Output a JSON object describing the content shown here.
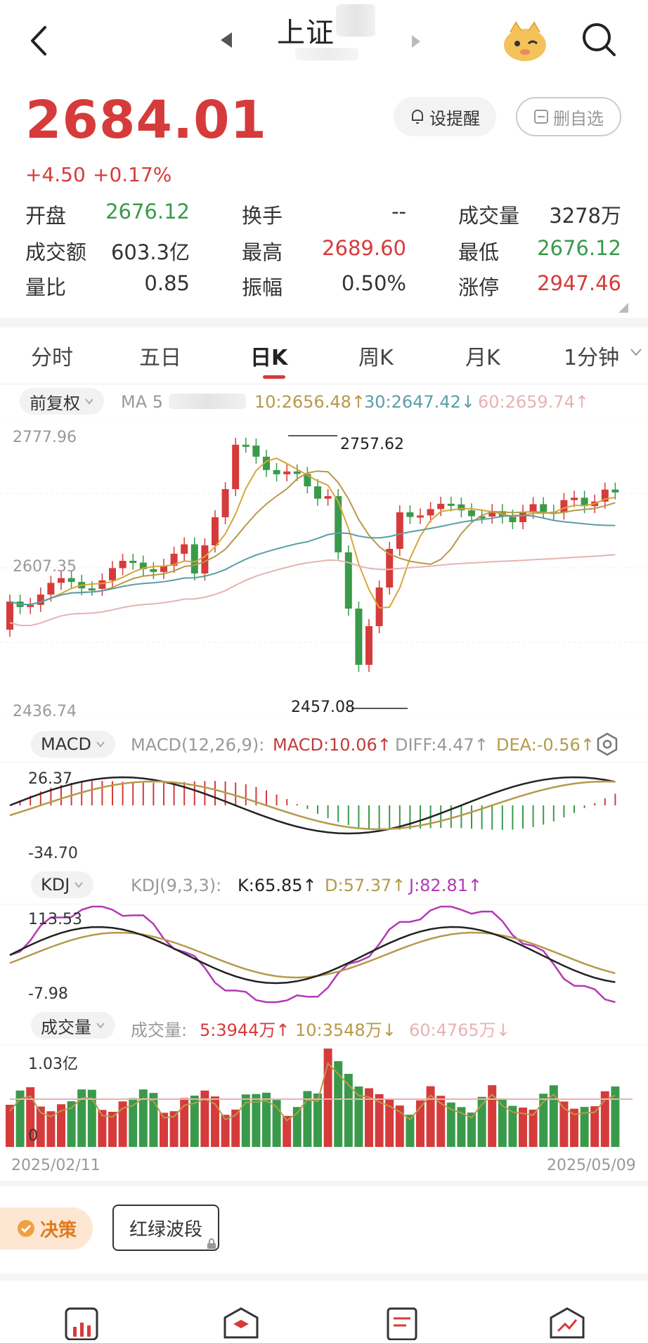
{
  "header": {
    "title": "上证",
    "back_icon": "back-arrow-icon",
    "prev_icon": "prev-triangle-icon",
    "next_icon": "next-triangle-icon",
    "mascot_icon": "mascot-icon",
    "search_icon": "search-icon"
  },
  "quote": {
    "price": "2684.01",
    "change": "+4.50",
    "change_pct": "+0.17%",
    "alert_label": "设提醒",
    "remove_label": "删自选"
  },
  "stats": {
    "open_label": "开盘",
    "open_value": "2676.12",
    "turnover_label": "换手",
    "turnover_value": "--",
    "volume_label": "成交量",
    "volume_value": "3278万",
    "amount_label": "成交额",
    "amount_value": "603.3亿",
    "high_label": "最高",
    "high_value": "2689.60",
    "low_label": "最低",
    "low_value": "2676.12",
    "ratio_label": "量比",
    "ratio_value": "0.85",
    "amplitude_label": "振幅",
    "amplitude_value": "0.50%",
    "limit_label": "涨停",
    "limit_value": "2947.46"
  },
  "tabs": [
    {
      "label": "分时"
    },
    {
      "label": "五日"
    },
    {
      "label": "日K"
    },
    {
      "label": "周K"
    },
    {
      "label": "月K"
    },
    {
      "label": "1分钟"
    }
  ],
  "active_tab": "日K",
  "kline": {
    "adjust_label": "前复权",
    "ma_label": "MA 5",
    "ma10": "10:2656.48↑",
    "ma30": "30:2647.42↓",
    "ma60": "60:2659.74↑",
    "top_axis": "2777.96",
    "mid_axis": "2607.35",
    "bottom_axis": "2436.74",
    "high_marker": "2757.62",
    "low_marker": "2457.08"
  },
  "macd": {
    "tag": "MACD",
    "params": "MACD(12,26,9):",
    "macd": "MACD:10.06↑",
    "diff": "DIFF:4.47↑",
    "dea": "DEA:-0.56↑",
    "top_axis": "26.37",
    "bottom_axis": "-34.70"
  },
  "kdj": {
    "tag": "KDJ",
    "params": "KDJ(9,3,3):",
    "k": "K:65.85↑",
    "d": "D:57.37↑",
    "j": "J:82.81↑",
    "top_axis": "113.53",
    "bottom_axis": "-7.98"
  },
  "volume": {
    "tag": "成交量",
    "label": "成交量:",
    "ma5": "5:3944万↑",
    "ma10": "10:3548万↓",
    "ma60": "60:4765万↓",
    "top_axis": "1.03亿",
    "bottom_axis": "0"
  },
  "dates": {
    "start": "2025/02/11",
    "end": "2025/05/09"
  },
  "bottom": {
    "decision_label": "决策",
    "redgreen_label": "红绿波段"
  },
  "colors": {
    "up": "#d63b3b",
    "down": "#3a9a4b",
    "ma5": "#d8a63a",
    "ma10": "#b69a4a",
    "ma30": "#5a9ea8",
    "ma60": "#e6b3b3"
  }
}
